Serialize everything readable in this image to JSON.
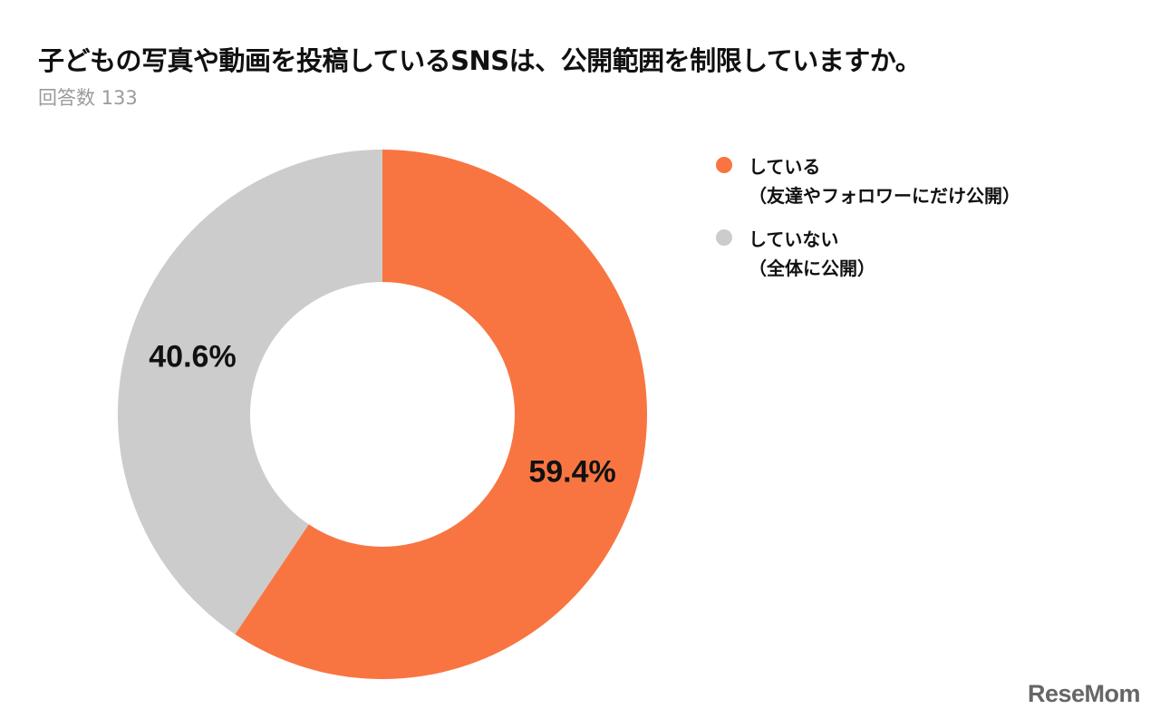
{
  "chart_data": {
    "type": "pie",
    "title": "子どもの写真や動画を投稿しているSNSは、公開範囲を制限していますか。",
    "subtitle": "回答数 133",
    "legend_position": "right",
    "slices": [
      {
        "label_line1": "している",
        "label_line2": "（友達やフォロワーにだけ公開）",
        "value": 59.4,
        "value_label": "59.4%",
        "color": "#F87542"
      },
      {
        "label_line1": "していない",
        "label_line2": "（全体に公開）",
        "value": 40.6,
        "value_label": "40.6%",
        "color": "#CCCCCC"
      }
    ]
  },
  "watermark": "ReseMom"
}
